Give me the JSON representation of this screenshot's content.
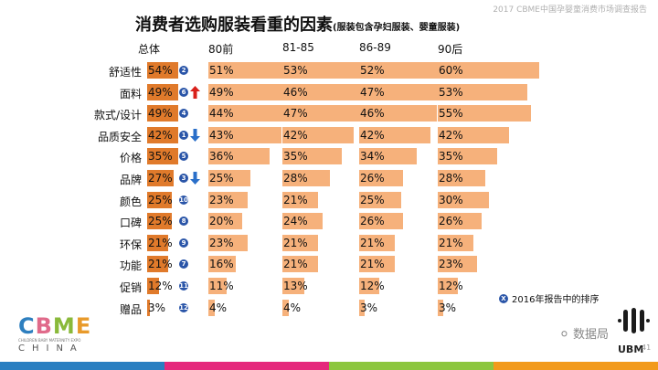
{
  "header_note": "2017 CBME中国孕婴童消费市场调查报告",
  "title": "消费者选购服装看重的因素",
  "title_sub": "(服装包含孕妇服装、婴童服装)",
  "chart_data": {
    "type": "bar",
    "title": "消费者选购服装看重的因素",
    "columns": [
      "总体",
      "80前",
      "81-85",
      "86-89",
      "90后"
    ],
    "categories": [
      "舒适性",
      "面料",
      "款式/设计",
      "品质安全",
      "价格",
      "品牌",
      "颜色",
      "口碑",
      "环保",
      "功能",
      "促销",
      "赠品"
    ],
    "series": [
      {
        "name": "总体",
        "values": [
          54,
          49,
          49,
          42,
          35,
          27,
          25,
          25,
          21,
          21,
          12,
          3
        ]
      },
      {
        "name": "80前",
        "values": [
          51,
          49,
          44,
          43,
          36,
          25,
          23,
          20,
          23,
          16,
          11,
          4
        ]
      },
      {
        "name": "81-85",
        "values": [
          53,
          46,
          47,
          42,
          35,
          28,
          21,
          24,
          21,
          21,
          13,
          4
        ]
      },
      {
        "name": "86-89",
        "values": [
          52,
          47,
          46,
          42,
          34,
          26,
          25,
          26,
          21,
          21,
          12,
          3
        ]
      },
      {
        "name": "90后",
        "values": [
          60,
          53,
          55,
          42,
          35,
          28,
          30,
          26,
          21,
          23,
          12,
          3
        ]
      }
    ],
    "rank_2016": [
      "2",
      "6",
      "4",
      "1",
      "5",
      "3",
      "10",
      "8",
      "9",
      "7",
      "11",
      "12"
    ],
    "rank_change": [
      "",
      "up",
      "",
      "down",
      "",
      "down",
      "",
      "",
      "",
      "",
      "",
      ""
    ],
    "unit": "%",
    "legend": {
      "marker": "X",
      "text": "2016年报告中的排序"
    }
  },
  "brand": {
    "logo": "CBME",
    "tagline": "CHILDREN BABY MATERNITY EXPO",
    "country": "CHINA"
  },
  "watermark": "数据局",
  "ubm": "UBM",
  "page_number": "41",
  "colors": {
    "overall_bar": "#e07a2b",
    "segment_bar": "#f6b17b",
    "rank_badge": "#2a55a8",
    "up_arrow": "#d9211b",
    "down_arrow": "#2a6fc9",
    "footer": [
      "#2a7fc1",
      "#e5297c",
      "#8cc63f",
      "#f29a1c"
    ]
  }
}
